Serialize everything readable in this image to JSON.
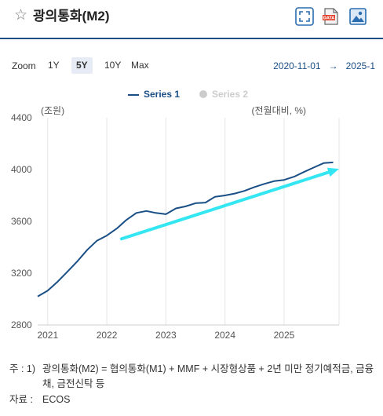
{
  "header": {
    "title": "광의통화(M2)",
    "icons": [
      "star-icon",
      "expand-icon",
      "data-export-icon",
      "image-export-icon"
    ],
    "export_badge": "DATA"
  },
  "zoom": {
    "label": "Zoom",
    "options": [
      "1Y",
      "5Y",
      "10Y",
      "Max"
    ],
    "selected": "5Y"
  },
  "range": {
    "from": "2020-11-01",
    "separator": "→",
    "to": "2025-1"
  },
  "legend": [
    {
      "name": "Series 1",
      "color": "#1a4f86",
      "active": true
    },
    {
      "name": "Series 2",
      "color": "#cccccc",
      "active": false
    }
  ],
  "chart_data": {
    "type": "line",
    "ylabel": "(조원)",
    "ylabel_right": "(전월대비, %)",
    "ylim": [
      2800,
      4400
    ],
    "yticks": [
      2800,
      3200,
      3600,
      4000,
      4400
    ],
    "xlim": [
      2020.83,
      2025.93
    ],
    "xticks": [
      {
        "value": 2021,
        "label": "2021"
      },
      {
        "value": 2022,
        "label": "2022"
      },
      {
        "value": 2023,
        "label": "2023"
      },
      {
        "value": 2024,
        "label": "2024"
      },
      {
        "value": 2025,
        "label": "2025"
      }
    ],
    "grid": "vertical",
    "series": [
      {
        "name": "Series 1",
        "color": "#1a4f86",
        "x": [
          2020.83,
          2021.0,
          2021.17,
          2021.33,
          2021.5,
          2021.67,
          2021.83,
          2022.0,
          2022.17,
          2022.33,
          2022.5,
          2022.67,
          2022.83,
          2023.0,
          2023.17,
          2023.33,
          2023.5,
          2023.67,
          2023.83,
          2024.0,
          2024.17,
          2024.33,
          2024.5,
          2024.67,
          2024.83,
          2025.0,
          2025.17,
          2025.33,
          2025.5,
          2025.67,
          2025.83
        ],
        "values": [
          3020,
          3065,
          3135,
          3210,
          3290,
          3380,
          3450,
          3490,
          3545,
          3610,
          3665,
          3680,
          3665,
          3655,
          3700,
          3715,
          3740,
          3745,
          3790,
          3800,
          3815,
          3835,
          3865,
          3890,
          3910,
          3920,
          3945,
          3980,
          4015,
          4050,
          4055
        ]
      }
    ],
    "annotations": [
      {
        "type": "trend-arrow",
        "color": "#33e6f2",
        "from": {
          "x": 2022.25,
          "y": 3465
        },
        "to": {
          "x": 2025.93,
          "y": 4005
        }
      }
    ]
  },
  "notes": {
    "prefix": "주 : 1)",
    "text": "광의통화(M2) = 협의통화(M1) + MMF + 시장형상품 + 2년 미만 정기예적금, 금융채, 금전신탁 등",
    "source_label": "자료 :",
    "source_value": "ECOS"
  }
}
